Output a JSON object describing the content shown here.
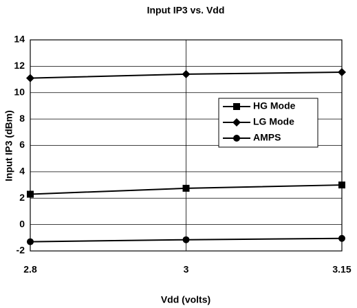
{
  "chart_data": {
    "type": "line",
    "title": "Input IP3 vs. Vdd",
    "x_label": "Vdd (volts)",
    "y_label": "Input IP3 (dBm)",
    "categories": [
      "2.8",
      "3",
      "3.15"
    ],
    "series": [
      {
        "name": "HG Mode",
        "color": "#000000",
        "marker": "square",
        "values": [
          2.3,
          2.75,
          3.0
        ]
      },
      {
        "name": "LG Mode",
        "color": "#000000",
        "marker": "diamond",
        "values": [
          11.1,
          11.4,
          11.55
        ]
      },
      {
        "name": "AMPS",
        "color": "#000000",
        "marker": "circle",
        "values": [
          -1.3,
          -1.15,
          -1.05
        ]
      }
    ],
    "ylim": [
      -2,
      14
    ],
    "yticks": [
      -2,
      0,
      2,
      4,
      6,
      8,
      10,
      12,
      14
    ],
    "grid": true
  }
}
